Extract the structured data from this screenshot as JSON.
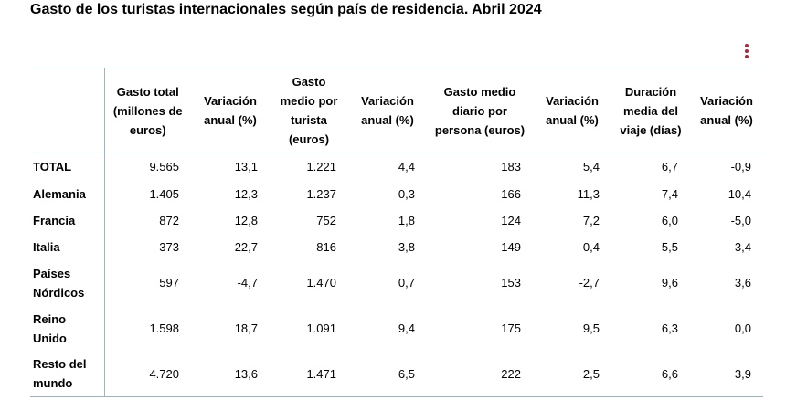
{
  "page": {
    "title": "Gasto de los turistas internacionales según país de residencia. Abril 2024"
  },
  "menu": {
    "icon": "kebab-menu-icon",
    "color": "#b0243a"
  },
  "table": {
    "row_header": "",
    "columns": [
      "Gasto total (millones de euros)",
      "Variación anual (%)",
      "Gasto medio por turista (euros)",
      "Variación anual (%)",
      "Gasto medio diario por persona (euros)",
      "Variación anual (%)",
      "Duración media del viaje (días)",
      "Variación anual (%)"
    ],
    "rows": [
      {
        "label": "TOTAL",
        "values": [
          "9.565",
          "13,1",
          "1.221",
          "4,4",
          "183",
          "5,4",
          "6,7",
          "-0,9"
        ]
      },
      {
        "label": "Alemania",
        "values": [
          "1.405",
          "12,3",
          "1.237",
          "-0,3",
          "166",
          "11,3",
          "7,4",
          "-10,4"
        ]
      },
      {
        "label": "Francia",
        "values": [
          "872",
          "12,8",
          "752",
          "1,8",
          "124",
          "7,2",
          "6,0",
          "-5,0"
        ]
      },
      {
        "label": "Italia",
        "values": [
          "373",
          "22,7",
          "816",
          "3,8",
          "149",
          "0,4",
          "5,5",
          "3,4"
        ]
      },
      {
        "label": "Países Nórdicos",
        "values": [
          "597",
          "-4,7",
          "1.470",
          "0,7",
          "153",
          "-2,7",
          "9,6",
          "3,6"
        ]
      },
      {
        "label": "Reino Unido",
        "values": [
          "1.598",
          "18,7",
          "1.091",
          "9,4",
          "175",
          "9,5",
          "6,3",
          "0,0"
        ]
      },
      {
        "label": "Resto del mundo",
        "values": [
          "4.720",
          "13,6",
          "1.471",
          "6,5",
          "222",
          "2,5",
          "6,6",
          "3,9"
        ]
      }
    ]
  }
}
